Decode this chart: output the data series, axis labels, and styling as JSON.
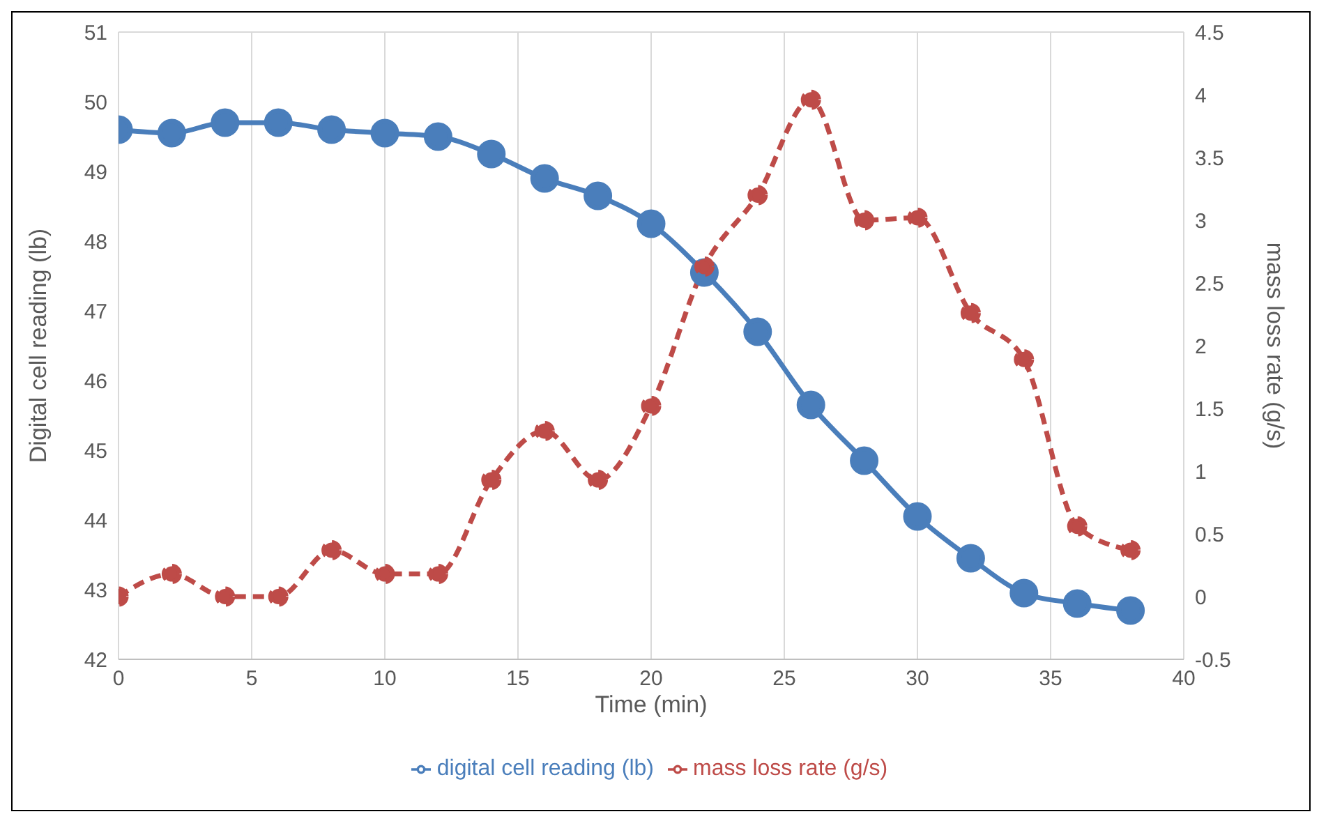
{
  "chart_data": {
    "type": "line",
    "xlabel": "Time (min)",
    "ylabel": "Digital cell reading (lb)",
    "y2label": "mass loss rate (g/s)",
    "x": [
      0,
      2,
      4,
      6,
      8,
      10,
      12,
      14,
      16,
      18,
      20,
      22,
      24,
      26,
      28,
      30,
      32,
      34,
      36,
      38
    ],
    "series": [
      {
        "name": "digital cell reading (lb)",
        "color": "#4a7ebb",
        "line_style": "solid",
        "values": [
          49.6,
          49.55,
          49.7,
          49.7,
          49.6,
          49.55,
          49.5,
          49.25,
          48.9,
          48.65,
          48.25,
          47.55,
          46.7,
          45.65,
          44.85,
          44.05,
          43.45,
          42.95,
          42.8,
          42.7
        ]
      },
      {
        "name": "mass loss rate (g/s)",
        "color": "#be4b48",
        "line_style": "dashed",
        "axis": "y2",
        "values": [
          0,
          0.18,
          0,
          0,
          0.37,
          0.18,
          0.18,
          0.93,
          1.32,
          0.93,
          1.52,
          2.63,
          3.2,
          3.96,
          3.0,
          3.02,
          2.26,
          1.89,
          0.56,
          0.37
        ]
      }
    ],
    "xlim": [
      0,
      40
    ],
    "xticks": [
      0,
      5,
      10,
      15,
      20,
      25,
      30,
      35,
      40
    ],
    "ylim": [
      42,
      51
    ],
    "yticks": [
      42,
      43,
      44,
      45,
      46,
      47,
      48,
      49,
      50,
      51
    ],
    "y2lim": [
      -0.5,
      4.5
    ],
    "y2ticks": [
      -0.5,
      0,
      0.5,
      1,
      1.5,
      2,
      2.5,
      3,
      3.5,
      4,
      4.5
    ],
    "grid": true,
    "legend": "bottom",
    "marker": "circle"
  }
}
